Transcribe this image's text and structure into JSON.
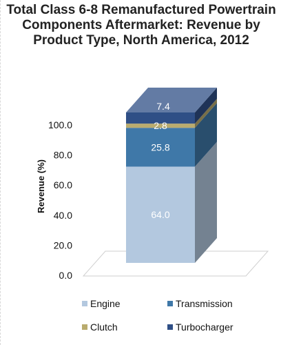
{
  "chart_data": {
    "type": "bar",
    "stacked": true,
    "three_d": true,
    "title_lines": [
      "Total Class 6-8 Remanufactured Powertrain",
      "Components Aftermarket: Revenue by",
      "Product Type, North America, 2012"
    ],
    "ylabel": "Revenue (%)",
    "xlabel": "",
    "ylim": [
      0,
      100
    ],
    "y_ticks": [
      "0.0",
      "20.0",
      "40.0",
      "60.0",
      "80.0",
      "100.0"
    ],
    "categories": [
      ""
    ],
    "series": [
      {
        "name": "Engine",
        "values": [
          64.0
        ],
        "label": "64.0",
        "color": "#b3c8df"
      },
      {
        "name": "Transmission",
        "values": [
          25.8
        ],
        "label": "25.8",
        "color": "#3f78a8"
      },
      {
        "name": "Clutch",
        "values": [
          2.8
        ],
        "label": "2.8",
        "color": "#b9ab6e"
      },
      {
        "name": "Turbocharger",
        "values": [
          7.4
        ],
        "label": "7.4",
        "color": "#2f4f86"
      }
    ],
    "legend_position": "bottom",
    "grid": false
  }
}
